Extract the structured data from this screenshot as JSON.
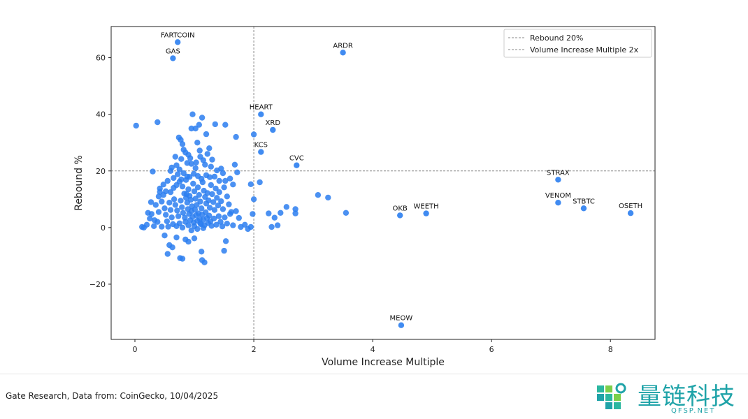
{
  "chart_data": {
    "type": "scatter",
    "xlabel": "Volume Increase Multiple",
    "ylabel": "Rebound %",
    "xlim": [
      -0.4,
      8.75
    ],
    "ylim": [
      -39.5,
      71
    ],
    "xticks": [
      0,
      2,
      4,
      6,
      8
    ],
    "yticks": [
      -20,
      0,
      20,
      40,
      60
    ],
    "ytick_labels": [
      "−20",
      "0",
      "20",
      "40",
      "60"
    ],
    "grid": false,
    "legend_position": "top-right",
    "point_color": "#2b7ef0",
    "reference_lines": [
      {
        "orientation": "horizontal",
        "value": 20,
        "label": "Rebound 20%"
      },
      {
        "orientation": "vertical",
        "value": 2,
        "label": "Volume Increase Multiple 2x"
      }
    ],
    "labeled_points": [
      {
        "label": "FARTCOIN",
        "x": 0.72,
        "y": 65.5
      },
      {
        "label": "GAS",
        "x": 0.64,
        "y": 59.8
      },
      {
        "label": "ARDR",
        "x": 3.5,
        "y": 61.8
      },
      {
        "label": "HEART",
        "x": 2.12,
        "y": 40.0
      },
      {
        "label": "XRD",
        "x": 2.32,
        "y": 34.5
      },
      {
        "label": "KCS",
        "x": 2.12,
        "y": 26.7
      },
      {
        "label": "CVC",
        "x": 2.72,
        "y": 22.0
      },
      {
        "label": "STRAX",
        "x": 7.12,
        "y": 16.9
      },
      {
        "label": "VENOM",
        "x": 7.12,
        "y": 8.8
      },
      {
        "label": "STBTC",
        "x": 7.55,
        "y": 6.8
      },
      {
        "label": "OSETH",
        "x": 8.34,
        "y": 5.1
      },
      {
        "label": "OKB",
        "x": 4.46,
        "y": 4.3
      },
      {
        "label": "WEETH",
        "x": 4.9,
        "y": 5.0
      },
      {
        "label": "MEOW",
        "x": 4.48,
        "y": -34.5
      }
    ],
    "points": [
      [
        0.02,
        36.0
      ],
      [
        0.38,
        37.2
      ],
      [
        0.3,
        19.8
      ],
      [
        0.12,
        0.2
      ],
      [
        0.22,
        5.2
      ],
      [
        0.27,
        9.0
      ],
      [
        0.33,
        2.6
      ],
      [
        0.42,
        12.6
      ],
      [
        0.45,
        0.3
      ],
      [
        0.5,
        -2.8
      ],
      [
        0.55,
        -9.3
      ],
      [
        0.58,
        -6.2
      ],
      [
        0.63,
        -7.0
      ],
      [
        0.7,
        -3.5
      ],
      [
        0.76,
        -10.8
      ],
      [
        0.8,
        -11.0
      ],
      [
        0.85,
        -4.2
      ],
      [
        0.9,
        -5.0
      ],
      [
        1.0,
        -3.8
      ],
      [
        1.12,
        -8.5
      ],
      [
        1.13,
        -11.5
      ],
      [
        1.17,
        -12.3
      ],
      [
        1.5,
        -8.2
      ],
      [
        1.53,
        -4.8
      ],
      [
        0.74,
        31.8
      ],
      [
        0.77,
        31.0
      ],
      [
        0.8,
        29.5
      ],
      [
        0.85,
        26.5
      ],
      [
        0.9,
        25.7
      ],
      [
        0.95,
        35.0
      ],
      [
        0.97,
        40.0
      ],
      [
        1.02,
        35.0
      ],
      [
        1.08,
        36.3
      ],
      [
        1.13,
        38.8
      ],
      [
        1.2,
        33.0
      ],
      [
        1.25,
        28.0
      ],
      [
        1.3,
        24.0
      ],
      [
        1.35,
        36.5
      ],
      [
        1.52,
        36.3
      ],
      [
        1.7,
        32.0
      ],
      [
        0.7,
        22.0
      ],
      [
        0.75,
        20.5
      ],
      [
        0.82,
        19.2
      ],
      [
        0.88,
        18.0
      ],
      [
        0.95,
        22.5
      ],
      [
        1.02,
        21.0
      ],
      [
        1.1,
        25.0
      ],
      [
        1.18,
        22.2
      ],
      [
        1.28,
        21.5
      ],
      [
        1.38,
        20.2
      ],
      [
        1.45,
        20.8
      ],
      [
        1.52,
        16.5
      ],
      [
        1.6,
        17.3
      ],
      [
        1.65,
        15.2
      ],
      [
        1.68,
        22.2
      ],
      [
        1.72,
        19.5
      ],
      [
        1.95,
        15.3
      ],
      [
        2.1,
        16.0
      ],
      [
        2.0,
        32.9
      ],
      [
        0.55,
        16.5
      ],
      [
        0.62,
        21.2
      ],
      [
        0.48,
        15.2
      ],
      [
        0.4,
        11.0
      ],
      [
        0.35,
        8.0
      ],
      [
        0.28,
        4.8
      ],
      [
        0.2,
        1.0
      ],
      [
        0.15,
        0.0
      ],
      [
        0.6,
        12.5
      ],
      [
        0.65,
        14.0
      ],
      [
        0.7,
        15.0
      ],
      [
        0.75,
        16.2
      ],
      [
        0.8,
        14.5
      ],
      [
        0.83,
        12.0
      ],
      [
        0.86,
        10.5
      ],
      [
        0.88,
        8.8
      ],
      [
        0.9,
        13.5
      ],
      [
        0.92,
        11.2
      ],
      [
        0.94,
        9.8
      ],
      [
        0.96,
        7.5
      ],
      [
        0.98,
        15.5
      ],
      [
        1.0,
        12.8
      ],
      [
        1.02,
        10.2
      ],
      [
        1.04,
        8.0
      ],
      [
        1.06,
        14.2
      ],
      [
        1.08,
        11.5
      ],
      [
        1.1,
        9.2
      ],
      [
        1.12,
        6.8
      ],
      [
        1.14,
        16.0
      ],
      [
        1.16,
        13.0
      ],
      [
        1.18,
        10.8
      ],
      [
        1.2,
        8.5
      ],
      [
        1.22,
        12.2
      ],
      [
        1.24,
        9.6
      ],
      [
        1.26,
        7.0
      ],
      [
        1.28,
        15.0
      ],
      [
        1.3,
        11.8
      ],
      [
        1.32,
        9.0
      ],
      [
        1.34,
        6.2
      ],
      [
        1.36,
        13.8
      ],
      [
        1.38,
        10.5
      ],
      [
        1.4,
        7.8
      ],
      [
        1.42,
        12.5
      ],
      [
        1.45,
        9.3
      ],
      [
        1.48,
        6.5
      ],
      [
        1.5,
        14.2
      ],
      [
        1.55,
        11.0
      ],
      [
        1.58,
        8.2
      ],
      [
        1.62,
        5.5
      ],
      [
        0.66,
        10.0
      ],
      [
        0.68,
        8.0
      ],
      [
        0.71,
        6.0
      ],
      [
        0.73,
        4.0
      ],
      [
        0.77,
        9.5
      ],
      [
        0.79,
        7.2
      ],
      [
        0.81,
        5.2
      ],
      [
        0.84,
        3.5
      ],
      [
        0.87,
        11.8
      ],
      [
        0.89,
        6.5
      ],
      [
        0.91,
        4.8
      ],
      [
        0.93,
        2.6
      ],
      [
        0.95,
        5.8
      ],
      [
        0.97,
        3.8
      ],
      [
        0.99,
        1.8
      ],
      [
        1.01,
        6.4
      ],
      [
        1.03,
        4.4
      ],
      [
        1.05,
        2.4
      ],
      [
        1.07,
        5.0
      ],
      [
        1.09,
        3.0
      ],
      [
        1.11,
        1.2
      ],
      [
        1.13,
        4.6
      ],
      [
        1.15,
        2.8
      ],
      [
        1.17,
        0.8
      ],
      [
        1.19,
        5.4
      ],
      [
        1.21,
        3.4
      ],
      [
        1.23,
        1.6
      ],
      [
        1.25,
        4.2
      ],
      [
        0.5,
        6.8
      ],
      [
        0.52,
        4.5
      ],
      [
        0.54,
        2.2
      ],
      [
        0.56,
        0.3
      ],
      [
        0.58,
        8.8
      ],
      [
        0.6,
        6.2
      ],
      [
        0.62,
        3.6
      ],
      [
        0.64,
        1.2
      ],
      [
        0.45,
        9.2
      ],
      [
        0.4,
        5.5
      ],
      [
        0.38,
        2.0
      ],
      [
        0.32,
        0.5
      ],
      [
        0.25,
        3.2
      ],
      [
        0.42,
        13.8
      ],
      [
        0.48,
        11.5
      ],
      [
        0.52,
        12.8
      ],
      [
        1.27,
        2.2
      ],
      [
        1.29,
        0.6
      ],
      [
        1.33,
        3.2
      ],
      [
        1.37,
        1.0
      ],
      [
        1.41,
        4.0
      ],
      [
        1.44,
        2.0
      ],
      [
        1.47,
        0.4
      ],
      [
        1.51,
        3.6
      ],
      [
        1.55,
        1.4
      ],
      [
        1.6,
        4.8
      ],
      [
        1.65,
        0.8
      ],
      [
        1.7,
        5.8
      ],
      [
        1.75,
        3.4
      ],
      [
        1.78,
        0.2
      ],
      [
        1.85,
        1.0
      ],
      [
        1.9,
        -0.5
      ],
      [
        1.95,
        0.2
      ],
      [
        1.98,
        4.8
      ],
      [
        2.0,
        10.0
      ],
      [
        2.25,
        5.0
      ],
      [
        2.3,
        0.2
      ],
      [
        2.35,
        3.5
      ],
      [
        2.4,
        0.8
      ],
      [
        2.45,
        5.2
      ],
      [
        2.55,
        7.3
      ],
      [
        2.7,
        6.5
      ],
      [
        2.7,
        5.0
      ],
      [
        3.08,
        11.5
      ],
      [
        3.25,
        10.6
      ],
      [
        3.55,
        5.2
      ],
      [
        0.7,
        0.5
      ],
      [
        0.75,
        1.5
      ],
      [
        0.8,
        0.0
      ],
      [
        0.85,
        2.0
      ],
      [
        0.9,
        0.8
      ],
      [
        0.95,
        -1.0
      ],
      [
        1.0,
        0.5
      ],
      [
        1.05,
        -0.5
      ],
      [
        1.1,
        1.5
      ],
      [
        1.15,
        -0.2
      ],
      [
        0.6,
        20.0
      ],
      [
        0.65,
        17.5
      ],
      [
        0.72,
        18.8
      ],
      [
        0.78,
        17.0
      ],
      [
        0.86,
        16.8
      ],
      [
        0.92,
        17.9
      ],
      [
        0.99,
        19.0
      ],
      [
        1.06,
        18.2
      ],
      [
        1.12,
        17.2
      ],
      [
        1.2,
        18.5
      ],
      [
        1.26,
        17.8
      ],
      [
        1.34,
        18.0
      ],
      [
        1.42,
        16.5
      ],
      [
        1.48,
        19.2
      ],
      [
        0.88,
        22.8
      ],
      [
        0.93,
        24.5
      ],
      [
        1.03,
        23.0
      ],
      [
        1.09,
        27.2
      ],
      [
        1.15,
        23.8
      ],
      [
        1.22,
        26.0
      ],
      [
        1.05,
        30.0
      ],
      [
        0.82,
        27.5
      ],
      [
        0.78,
        24.2
      ],
      [
        0.68,
        25.0
      ]
    ]
  },
  "footer": {
    "source": "Gate Research, Data from: CoinGecko, 10/04/2025",
    "brand_name": "量链科技",
    "brand_sub": "QFSP.NET"
  }
}
